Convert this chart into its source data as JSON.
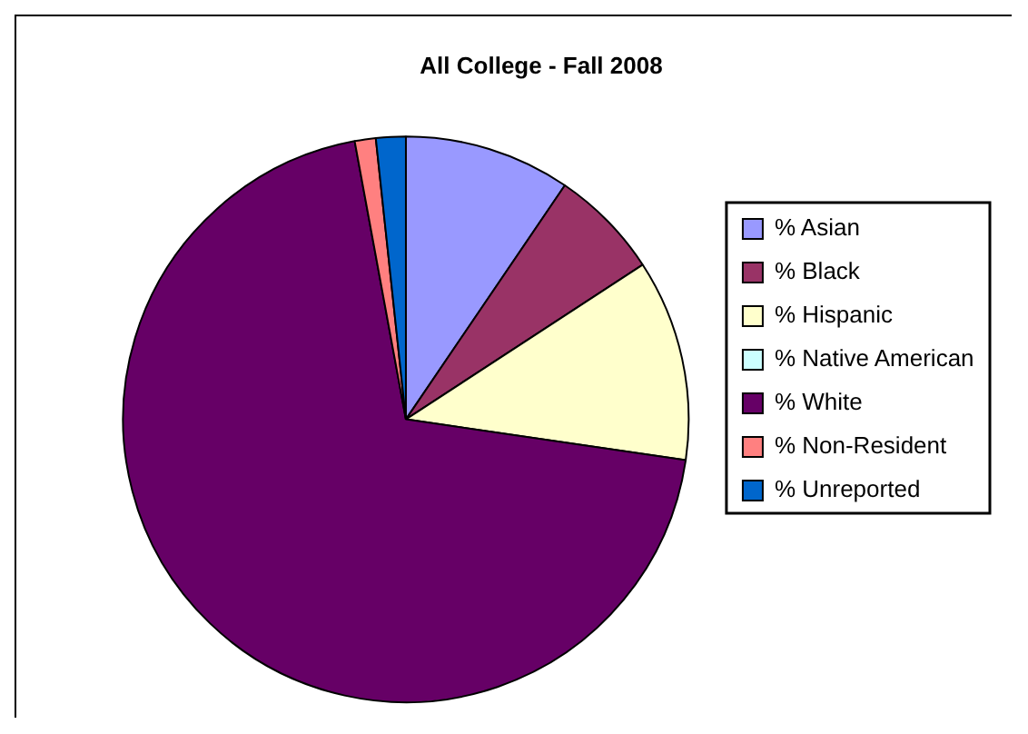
{
  "chart_data": {
    "type": "pie",
    "title": "All College - Fall 2008",
    "categories": [
      "% Asian",
      "% Black",
      "% Hispanic",
      "% Native American",
      "% White",
      "% Non-Resident",
      "% Unreported"
    ],
    "values": [
      9.5,
      6.3,
      11.5,
      null,
      69.8,
      1.2,
      1.7
    ],
    "colors": [
      "#9999ff",
      "#993366",
      "#ffffcc",
      "#ccffff",
      "#660066",
      "#ff8080",
      "#0066cc"
    ],
    "legend": "right"
  }
}
